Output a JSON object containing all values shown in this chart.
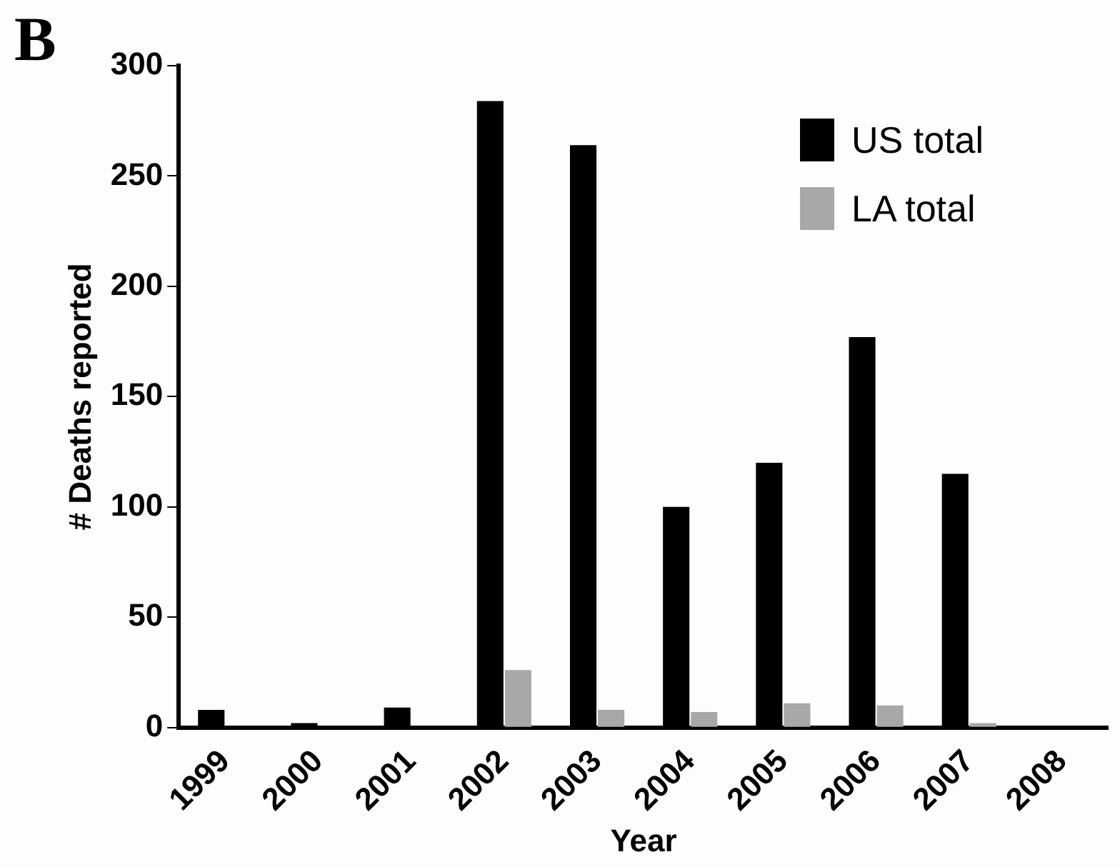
{
  "chart_data": {
    "type": "bar",
    "title": "B",
    "xlabel": "Year",
    "ylabel": "# Deaths reported",
    "categories": [
      "1999",
      "2000",
      "2001",
      "2002",
      "2003",
      "2004",
      "2005",
      "2006",
      "2007",
      "2008"
    ],
    "series": [
      {
        "name": "US total",
        "color": "#000000",
        "values": [
          8,
          2,
          9,
          284,
          264,
          100,
          120,
          177,
          115,
          0
        ]
      },
      {
        "name": "LA total",
        "color": "#a8a8a8",
        "values": [
          0,
          0,
          0,
          26,
          8,
          7,
          11,
          10,
          2,
          0
        ]
      }
    ],
    "ylim": [
      0,
      300
    ],
    "yticks": [
      0,
      50,
      100,
      150,
      200,
      250,
      300
    ],
    "grid": false,
    "legend": "top right"
  }
}
